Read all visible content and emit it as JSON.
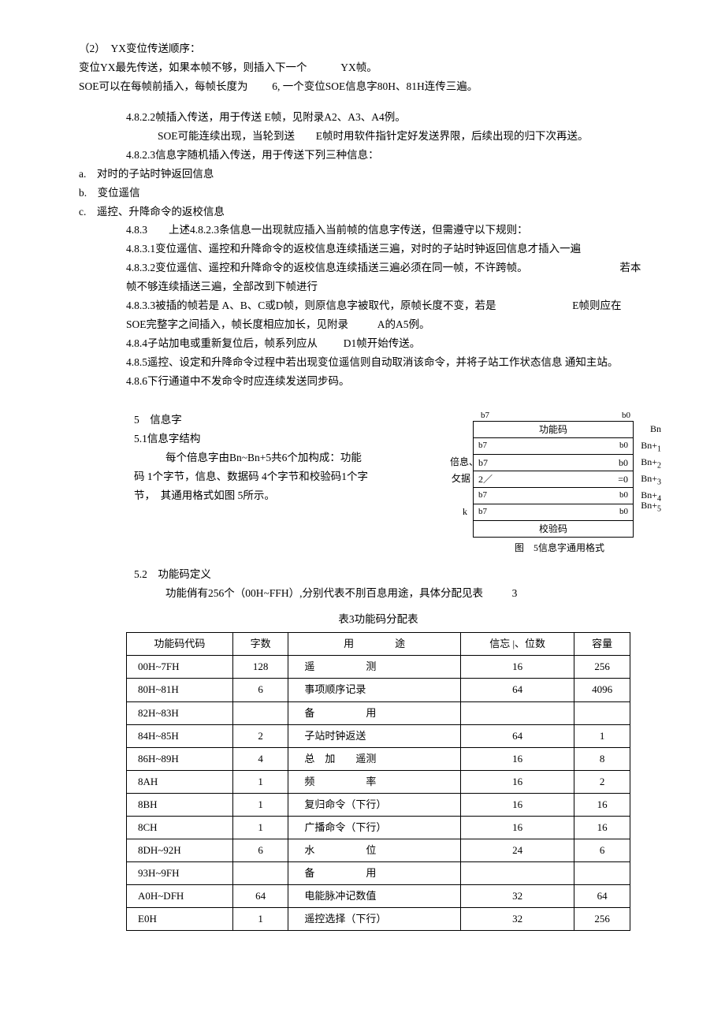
{
  "p1": "（2）　YX变位传送顺序：",
  "p2a": "变位YX最先传送，如果本帧不够，则插入下一个",
  "p2b": "YX帧。",
  "p3a": "SOE可以在每帧前插入，每帧长度为",
  "p3b": "6, 一个变位SOE信息字80H、81H连传三遍。",
  "p4": "4.8.2.2帧插入传送，用于传送 E帧，见附录A2、A3、A4例。",
  "p5a": "SOE可能连续出现，当轮到送",
  "p5b": "E帧时用软件指针定好发送界限，后续出现的归下次再送。",
  "p6": "4.8.2.3信息字随机插入传送，用于传送下列三种信息：",
  "p7a": "a.　对时的子站时钟返回信息",
  "p7b": "b.　变位遥信",
  "p7c": "c.　遥控、升降命令的返校信息",
  "p8": "4.8.3　　上述4.8.2.3条信息一出现就应插入当前帧的信息字传送，但需遵守以下规则：",
  "p9": "4.8.3.1变位遥信、遥控和升降命令的返校信息连续插送三遍，对时的子站时钟返回信息才插入一遍",
  "p10a": "4.8.3.2变位遥信、遥控和升降命令的返校信息连续插送三遍必须在同一帧，不许跨帧。",
  "p10b": "若本",
  "p10c": "帧不够连续插送三遍，全部改到下帧进行",
  "p11a": "4.8.3.3被插的帧若是 A、B、C或D帧，则原信息字被取代，原帧长度不变，若是",
  "p11b": "E帧则应在",
  "p11c": "SOE完整字之间插入，帧长度相应加长，见附录",
  "p11d": "A的A5例。",
  "p12a": "4.8.4子站加电或重新复位后，帧系列应从",
  "p12b": "D1帧开始传送。",
  "p13": "4.8.5遥控、设定和升降命令过程中若出现变位遥信则自动取消该命令，并将子站工作状态信息 通知主站。",
  "p14": "4.8.6下行通道中不发命令时应连续发送同步码。",
  "sec5": "5　信息字",
  "sec51": "5.1信息字结构",
  "s51body1": "每个倍息字由Bn~Bn+5共6个加构成：功能",
  "s51body2": "码 1个字节，信息、数据码 4个字节和校验码1个字",
  "s51body3": "节，　其通用格式如图 5所示。",
  "fig": {
    "b7": "b7",
    "b0": "b0",
    "fn": "功能码",
    "info": "倍息、",
    "data": "攵据",
    "twoSlash": "2／",
    "eq0": "=0",
    "k": "k",
    "chk": "校验码",
    "Bn": "Bn",
    "Bnp": "Bn+",
    "n1": "1",
    "n2": "2",
    "n3": "3",
    "n4": "4",
    "n5": "5",
    "caption": "图　5信息字通用格",
    "capend": "式"
  },
  "sec52": "5.2　功能码定义",
  "s52line": "功能俏有256个（00H~FFH）,分别代表不刖百息用途，具体分配见表",
  "s52num": "3",
  "tabletitle": "表3功能码分配表",
  "th": [
    "功能码代码",
    "字数",
    "用　　　　途",
    "信忘  |、位数",
    "容量"
  ],
  "rows": [
    [
      "00H~7FH",
      "128",
      "遥　　　　　测",
      "16",
      "256"
    ],
    [
      "80H~81H",
      "6",
      "事项顺序记录",
      "64",
      "4096"
    ],
    [
      "82H~83H",
      "",
      "备　　　　　用",
      "",
      ""
    ],
    [
      "84H~85H",
      "2",
      "子站时钟返送",
      "64",
      "1"
    ],
    [
      "86H~89H",
      "4",
      "总　加　　遥测",
      "16",
      "8"
    ],
    [
      "8AH",
      "1",
      "频　　　　　率",
      "16",
      "2"
    ],
    [
      "8BH",
      "1",
      "复归命令（下行）",
      "16",
      "16"
    ],
    [
      "8CH",
      "1",
      "广播命令（下行）",
      "16",
      "16"
    ],
    [
      "8DH~92H",
      "6",
      "水　　　　　位",
      "24",
      "6"
    ],
    [
      "93H~9FH",
      "",
      "备　　　　　用",
      "",
      ""
    ],
    [
      "A0H~DFH",
      "64",
      "电能脉冲记数值",
      "32",
      "64"
    ],
    [
      "E0H",
      "1",
      "遥控选择（下行）",
      "32",
      "256"
    ]
  ]
}
